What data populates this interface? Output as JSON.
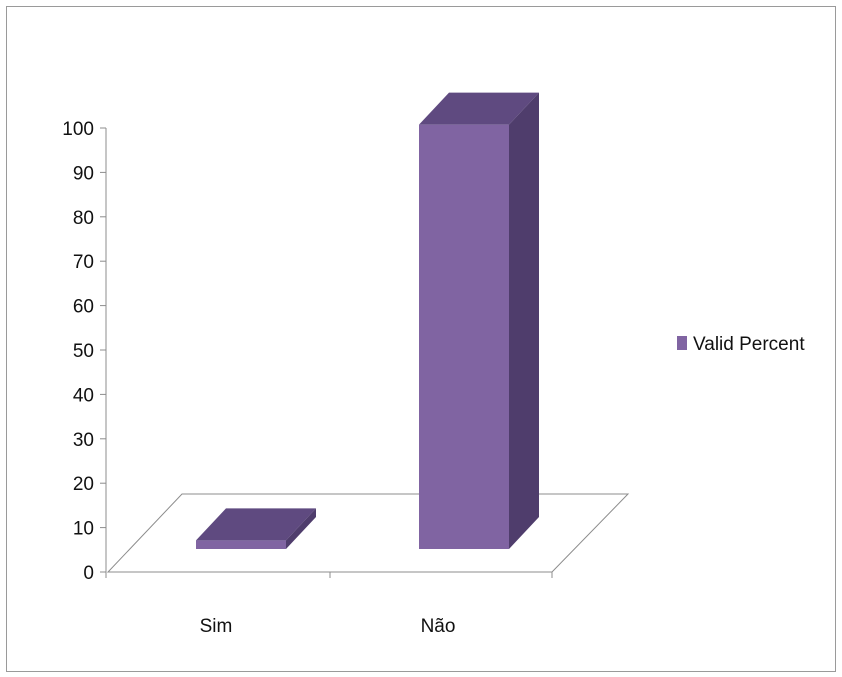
{
  "chart_data": {
    "type": "bar",
    "style": "3d-column",
    "categories": [
      "Sim",
      "Não"
    ],
    "series": [
      {
        "name": "Valid Percent",
        "values": [
          2,
          98
        ],
        "color": "#8064a2"
      }
    ],
    "ylim": [
      0,
      100
    ],
    "yticks": [
      0,
      10,
      20,
      30,
      40,
      50,
      60,
      70,
      80,
      90,
      100
    ],
    "legend": {
      "position": "right"
    },
    "grid": false,
    "colors": {
      "front": "#8064a2",
      "top": "#5f4a80",
      "side": "#4f3d6c"
    }
  }
}
